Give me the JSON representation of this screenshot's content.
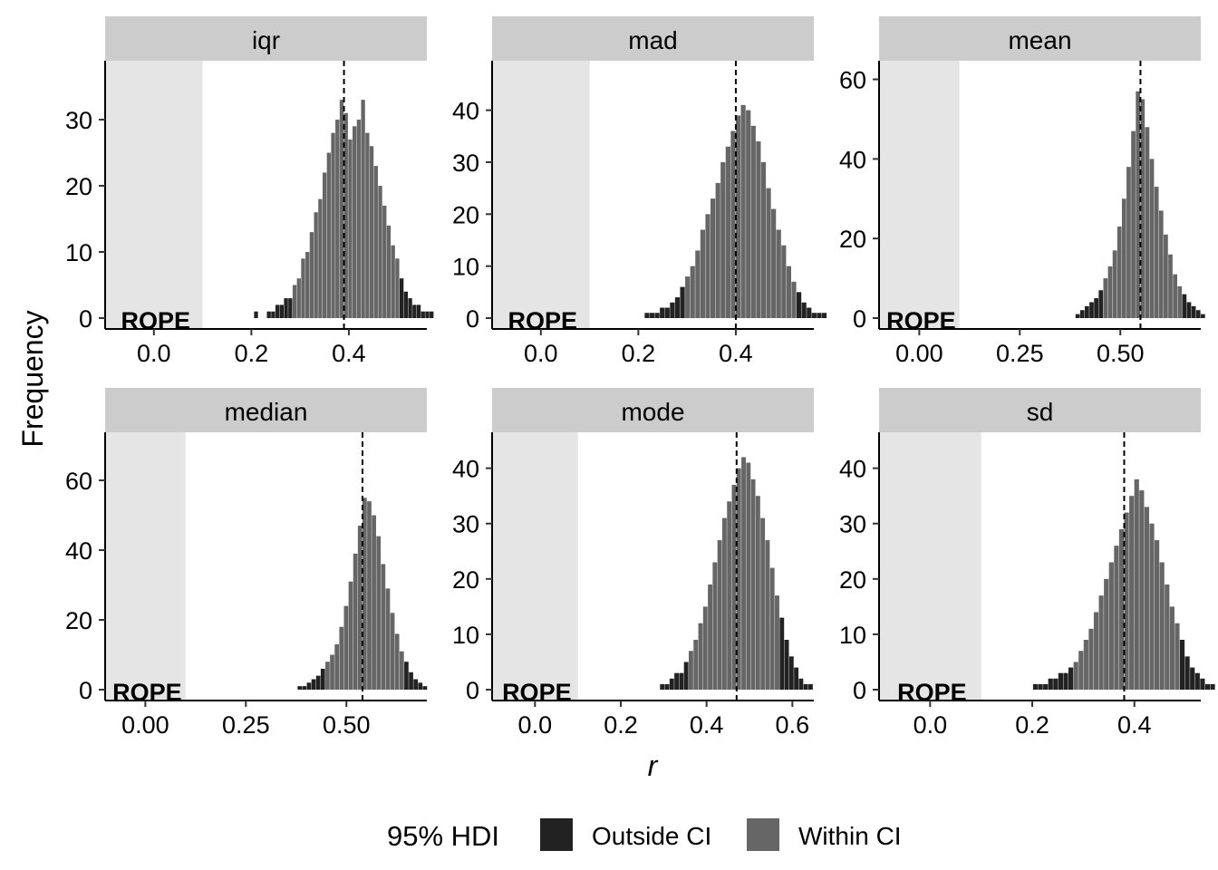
{
  "chart_data": {
    "type": "bar",
    "xlabel": "r",
    "ylabel": "Frequency",
    "rope": {
      "range": [
        -0.1,
        0.1
      ],
      "label": "ROPE"
    },
    "legend": {
      "title": "95% HDI",
      "position": "bottom",
      "items": [
        {
          "label": "Outside CI",
          "color": "#222222"
        },
        {
          "label": "Within CI",
          "color": "#666666"
        }
      ]
    },
    "colors": {
      "outside": "#222222",
      "within": "#666666",
      "rope": "#e5e5e5",
      "strip": "#cccccc"
    },
    "panels": [
      {
        "name": "iqr",
        "xlim": [
          -0.1,
          0.56
        ],
        "ylim": [
          0,
          38.5
        ],
        "xticks": [
          "0.0",
          "0.2",
          "0.4"
        ],
        "xtick_values": [
          0,
          0.2,
          0.4
        ],
        "yticks": [
          0,
          10,
          20,
          30
        ],
        "center": 0.39,
        "ci": [
          0.283,
          0.5
        ],
        "counts": [
          1,
          0,
          0,
          1,
          1,
          2,
          2,
          3,
          3,
          5,
          6,
          9,
          10,
          13,
          16,
          18,
          22,
          25,
          28,
          30,
          33,
          31,
          27,
          29,
          30,
          33,
          28,
          26,
          23,
          20,
          17,
          14,
          11,
          9,
          6,
          4,
          3,
          2,
          2,
          1,
          1,
          1
        ]
      },
      {
        "name": "mad",
        "xlim": [
          -0.1,
          0.56
        ],
        "ylim": [
          0,
          49
        ],
        "xticks": [
          "0.0",
          "0.2",
          "0.4"
        ],
        "xtick_values": [
          0,
          0.2,
          0.4
        ],
        "yticks": [
          0,
          10,
          20,
          30,
          40
        ],
        "center": 0.4,
        "ci": [
          0.3,
          0.52
        ],
        "counts": [
          1,
          1,
          1,
          2,
          2,
          3,
          4,
          6,
          8,
          10,
          13,
          17,
          20,
          23,
          26,
          30,
          33,
          36,
          39,
          41,
          40,
          37,
          34,
          30,
          25,
          21,
          17,
          14,
          10,
          7,
          5,
          3,
          2,
          1,
          1,
          1
        ]
      },
      {
        "name": "mean",
        "xlim": [
          -0.1,
          0.7
        ],
        "ylim": [
          0,
          64
        ],
        "xticks": [
          "0.00",
          "0.25",
          "0.50"
        ],
        "xtick_values": [
          0,
          0.25,
          0.5
        ],
        "yticks": [
          0,
          20,
          40,
          60
        ],
        "center": 0.55,
        "ci": [
          0.46,
          0.65
        ],
        "counts": [
          1,
          2,
          3,
          4,
          5,
          7,
          10,
          13,
          17,
          23,
          30,
          38,
          47,
          57,
          55,
          48,
          40,
          33,
          27,
          21,
          16,
          11,
          8,
          6,
          4,
          3,
          2,
          1
        ]
      },
      {
        "name": "median",
        "xlim": [
          -0.1,
          0.7
        ],
        "ylim": [
          0,
          73
        ],
        "xticks": [
          "0.00",
          "0.25",
          "0.50"
        ],
        "xtick_values": [
          0,
          0.25,
          0.5
        ],
        "yticks": [
          0,
          20,
          40,
          60
        ],
        "center": 0.54,
        "ci": [
          0.45,
          0.64
        ],
        "counts": [
          1,
          1,
          2,
          3,
          4,
          6,
          8,
          10,
          13,
          18,
          24,
          31,
          39,
          47,
          55,
          54,
          50,
          44,
          36,
          29,
          22,
          16,
          11,
          8,
          5,
          3,
          2,
          1
        ]
      },
      {
        "name": "mode",
        "xlim": [
          -0.1,
          0.65
        ],
        "ylim": [
          0,
          46
        ],
        "xticks": [
          "0.0",
          "0.2",
          "0.4",
          "0.6"
        ],
        "xtick_values": [
          0,
          0.2,
          0.4,
          0.6
        ],
        "yticks": [
          0,
          10,
          20,
          30,
          40
        ],
        "center": 0.47,
        "ci": [
          0.36,
          0.57
        ],
        "counts": [
          1,
          1,
          2,
          3,
          3,
          5,
          7,
          9,
          12,
          15,
          19,
          23,
          27,
          31,
          34,
          37,
          40,
          42,
          41,
          38,
          35,
          31,
          27,
          22,
          17,
          13,
          9,
          6,
          4,
          2,
          1,
          1
        ]
      },
      {
        "name": "sd",
        "xlim": [
          -0.1,
          0.53
        ],
        "ylim": [
          0,
          46
        ],
        "xticks": [
          "0.0",
          "0.2",
          "0.4"
        ],
        "xtick_values": [
          0,
          0.2,
          0.4
        ],
        "yticks": [
          0,
          10,
          20,
          30,
          40
        ],
        "center": 0.38,
        "ci": [
          0.28,
          0.49
        ],
        "counts": [
          1,
          1,
          1,
          2,
          2,
          3,
          3,
          4,
          5,
          7,
          9,
          11,
          14,
          17,
          20,
          23,
          26,
          29,
          32,
          35,
          38,
          36,
          33,
          30,
          27,
          23,
          19,
          15,
          12,
          9,
          6,
          4,
          3,
          2,
          1,
          1
        ]
      }
    ]
  }
}
